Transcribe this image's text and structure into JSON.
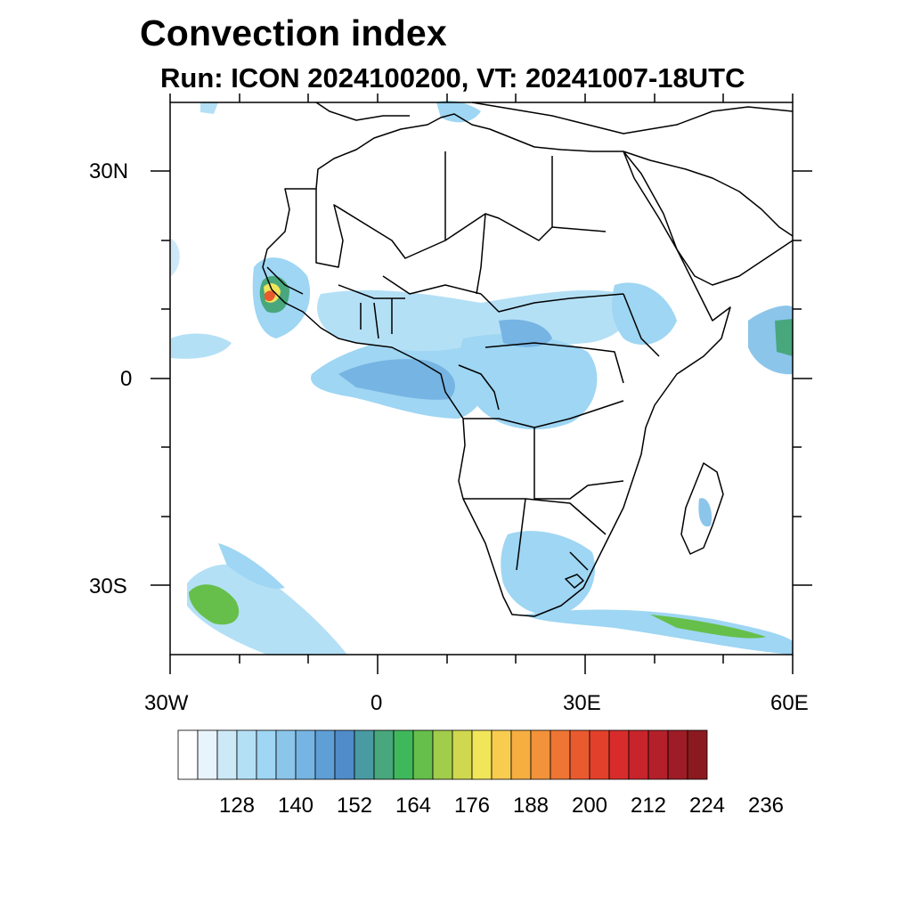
{
  "title": "Convection index",
  "subtitle": "Run: ICON 2024100200,  VT: 20241007-18UTC",
  "map": {
    "extent": {
      "lon_min": -30,
      "lon_max": 60,
      "lat_min": -40,
      "lat_max": 40
    },
    "lat_labels": [
      "30N",
      "0",
      "30S"
    ],
    "lon_labels": [
      "30W",
      "0",
      "30E",
      "60E"
    ]
  },
  "colorbar": {
    "tick_labels": [
      "128",
      "140",
      "152",
      "164",
      "176",
      "188",
      "200",
      "212",
      "224",
      "236"
    ],
    "colors": [
      "#ffffff",
      "#e8f4fb",
      "#cde9f7",
      "#b4e0f6",
      "#9ed6f3",
      "#8cc5ea",
      "#76b4e3",
      "#5e9fd6",
      "#4f8cc9",
      "#4a9aa3",
      "#48a77d",
      "#3fb85c",
      "#66bf4a",
      "#a2cc4c",
      "#cfd84e",
      "#f1e55a",
      "#f8cc4f",
      "#f6ae41",
      "#f2923a",
      "#ee7534",
      "#ea5a2f",
      "#e2402b",
      "#d72c2b",
      "#c7252b",
      "#b3202a",
      "#9e1c25",
      "#8b1a20"
    ]
  }
}
